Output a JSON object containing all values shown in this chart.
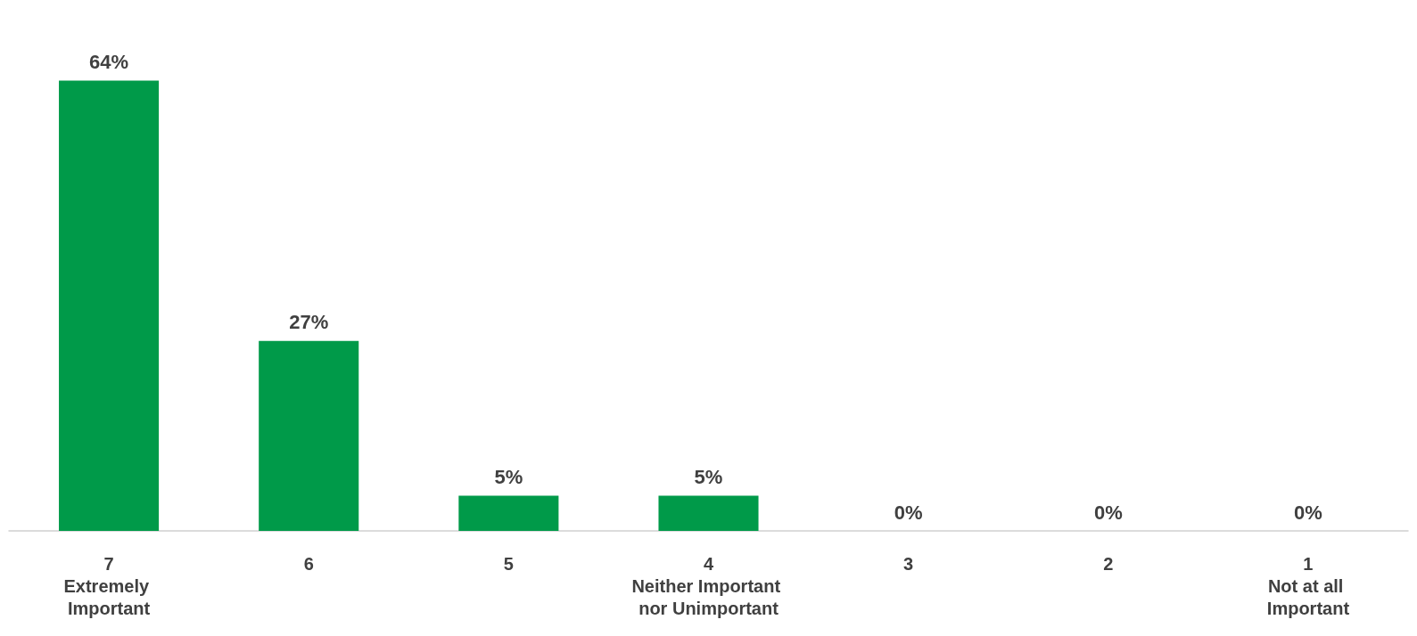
{
  "chart_data": {
    "type": "bar",
    "categories": [
      "7\nExtremely Important",
      "6",
      "5",
      "4\nNeither Important nor Unimportant",
      "3",
      "2",
      "1\nNot at all Important"
    ],
    "values": [
      64,
      27,
      5,
      5,
      0,
      0,
      0
    ],
    "value_labels": [
      "64%",
      "27%",
      "5%",
      "5%",
      "0%",
      "0%",
      "0%"
    ],
    "color": "#009a49"
  }
}
